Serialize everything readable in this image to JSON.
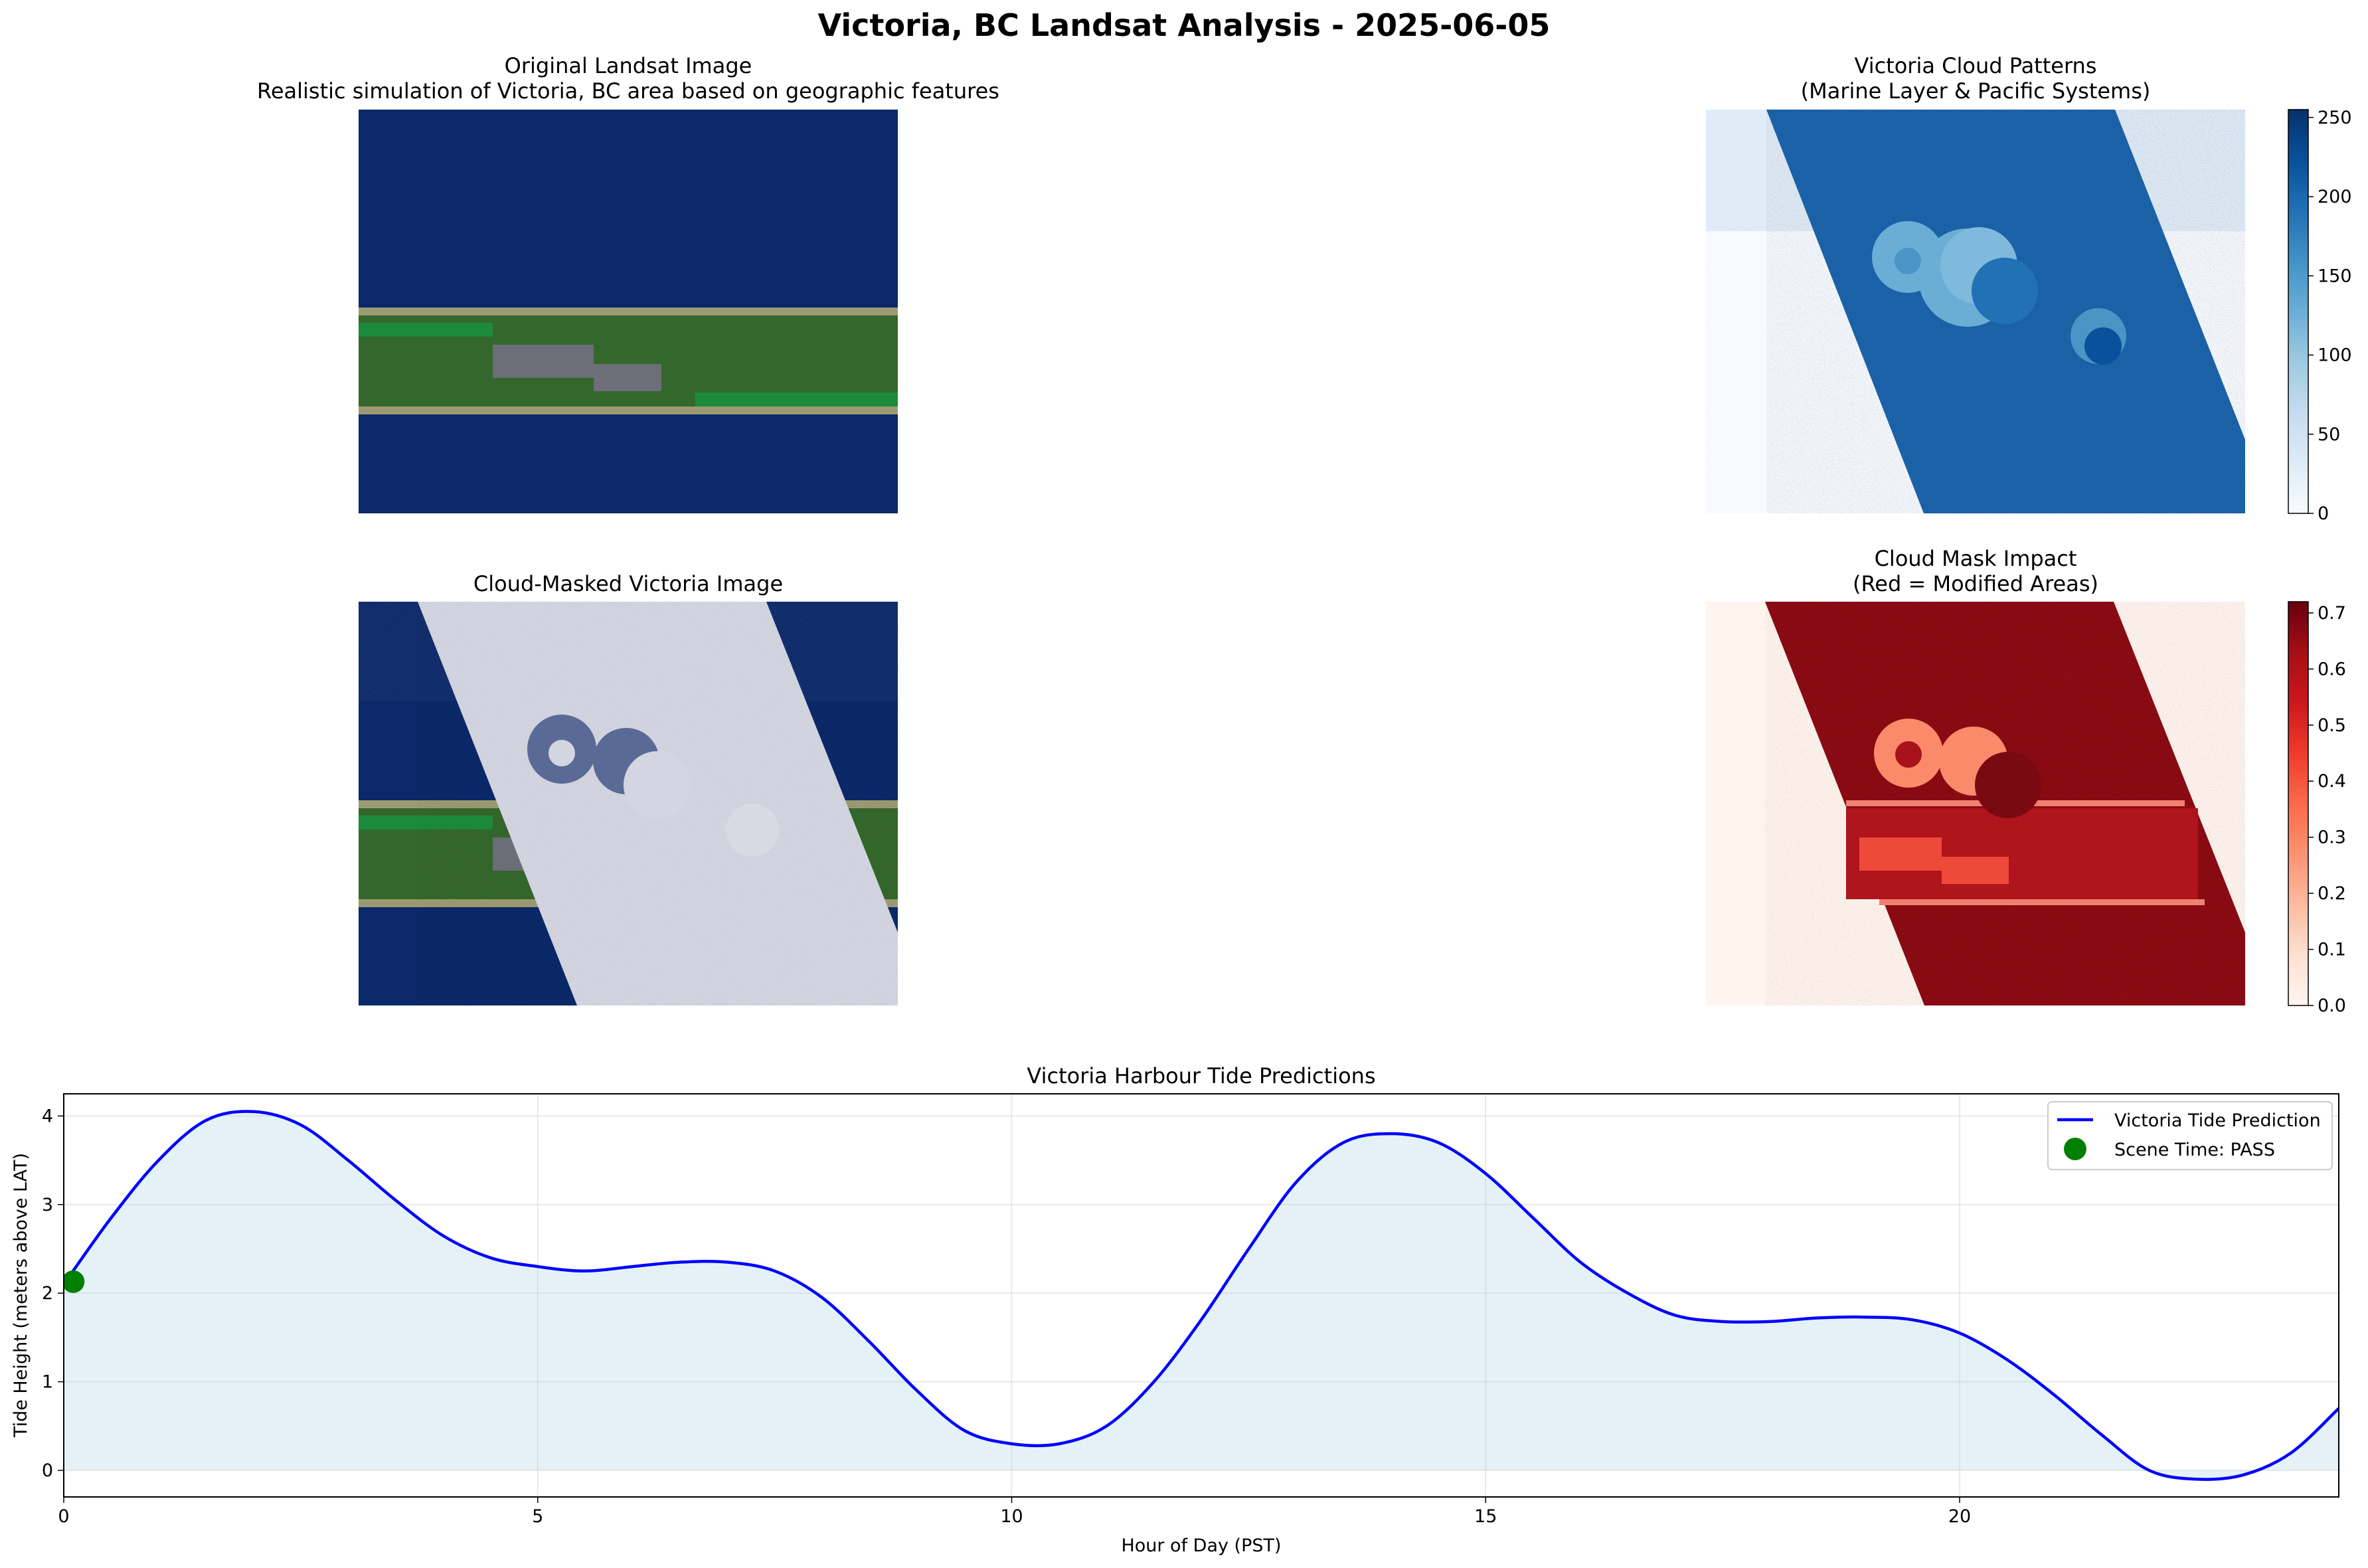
{
  "figure": {
    "suptitle": "Victoria, BC Landsat Analysis - 2025-06-05"
  },
  "panels": {
    "original": {
      "title_line1": "Original Landsat Image",
      "title_line2": "Realistic simulation of Victoria, BC area based on geographic features",
      "colors": {
        "water": "#0b2868",
        "land": "#34672b",
        "shore": "#9c9a72",
        "urban": "#6c6e78",
        "park": "#1b8a3a"
      }
    },
    "clouds": {
      "title_line1": "Victoria Cloud Patterns",
      "title_line2": "(Marine Layer & Pacific Systems)",
      "colormap": "Blues",
      "colorbar_ticks": [
        0,
        50,
        100,
        150,
        200,
        250
      ],
      "colorbar_range": [
        0,
        255
      ]
    },
    "masked": {
      "title_line1": "Cloud-Masked Victoria Image",
      "cloud_fill": "#d3d5e0"
    },
    "impact": {
      "title_line1": "Cloud Mask Impact",
      "title_line2": "(Red = Modified Areas)",
      "colormap": "Reds",
      "colorbar_ticks": [
        0.0,
        0.1,
        0.2,
        0.3,
        0.4,
        0.5,
        0.6,
        0.7
      ],
      "colorbar_tick_labels": [
        "0.0",
        "0.1",
        "0.2",
        "0.3",
        "0.4",
        "0.5",
        "0.6",
        "0.7"
      ],
      "colorbar_range": [
        0,
        0.72
      ]
    }
  },
  "chart_data": {
    "type": "line",
    "title": "Victoria Harbour Tide Predictions",
    "xlabel": "Hour of Day (PST)",
    "ylabel": "Tide Height (meters above LAT)",
    "xlim": [
      0,
      24
    ],
    "ylim": [
      -0.3,
      4.25
    ],
    "xticks": [
      0,
      5,
      10,
      15,
      20
    ],
    "yticks": [
      0,
      1,
      2,
      3,
      4
    ],
    "grid": true,
    "fill_under": true,
    "legend_position": "upper right",
    "series": [
      {
        "name": "Victoria Tide Prediction",
        "color": "#0000ff",
        "x": [
          0,
          0.5,
          1,
          1.5,
          2,
          2.5,
          3,
          3.5,
          4,
          4.5,
          5,
          5.5,
          6,
          6.5,
          7,
          7.5,
          8,
          8.5,
          9,
          9.5,
          10,
          10.5,
          11,
          11.5,
          12,
          12.5,
          13,
          13.5,
          14,
          14.5,
          15,
          15.5,
          16,
          16.5,
          17,
          17.5,
          18,
          18.5,
          19,
          19.5,
          20,
          20.5,
          21,
          21.5,
          22,
          22.5,
          23,
          23.5,
          24
        ],
        "y": [
          2.1,
          2.85,
          3.5,
          3.95,
          4.05,
          3.9,
          3.5,
          3.05,
          2.65,
          2.4,
          2.3,
          2.25,
          2.3,
          2.35,
          2.35,
          2.25,
          1.95,
          1.45,
          0.9,
          0.45,
          0.3,
          0.3,
          0.5,
          1.0,
          1.7,
          2.5,
          3.25,
          3.7,
          3.8,
          3.7,
          3.35,
          2.85,
          2.35,
          2.0,
          1.75,
          1.68,
          1.68,
          1.72,
          1.73,
          1.7,
          1.55,
          1.25,
          0.85,
          0.4,
          0.0,
          -0.1,
          -0.05,
          0.2,
          0.7
        ]
      }
    ],
    "marker": {
      "label": "Scene Time: PASS",
      "x": 0.1,
      "y": 2.13,
      "color": "#008000"
    }
  }
}
